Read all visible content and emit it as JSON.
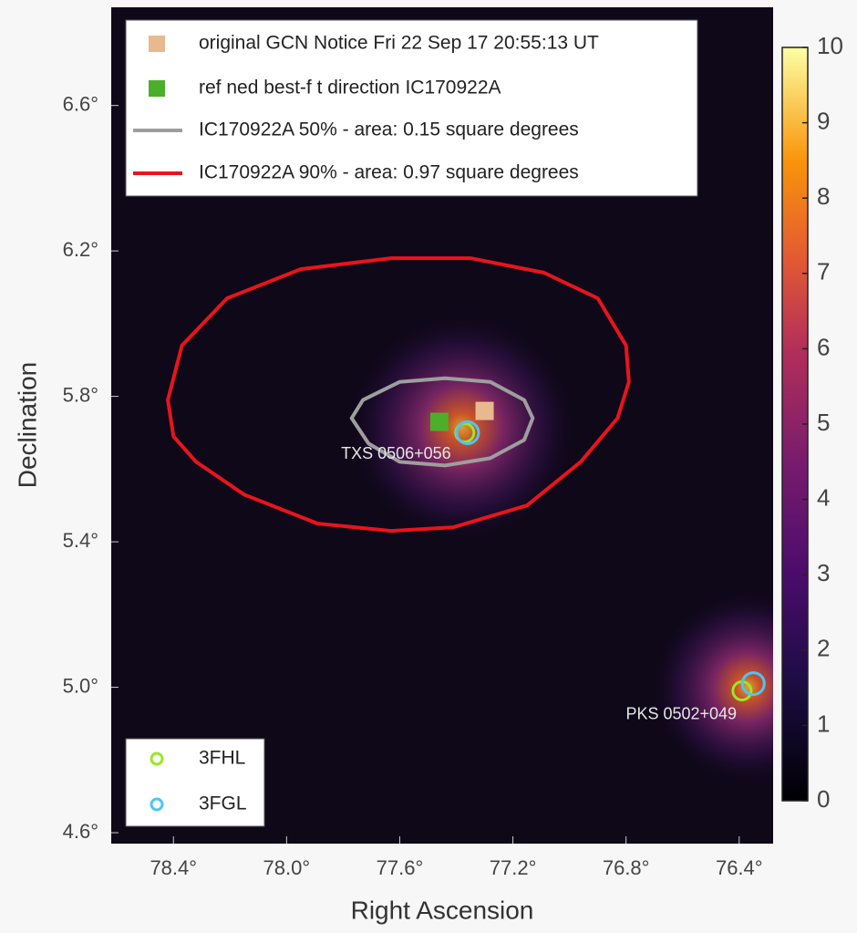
{
  "chart_data": {
    "type": "skymap",
    "xlabel": "Right Ascension",
    "ylabel": "Declination",
    "xlim": [
      78.62,
      76.28
    ],
    "ylim": [
      4.57,
      6.87
    ],
    "xticks": [
      {
        "value": 78.4,
        "label": "78.4°"
      },
      {
        "value": 78.0,
        "label": "78.0°"
      },
      {
        "value": 77.6,
        "label": "77.6°"
      },
      {
        "value": 77.2,
        "label": "77.2°"
      },
      {
        "value": 76.8,
        "label": "76.8°"
      },
      {
        "value": 76.4,
        "label": "76.4°"
      }
    ],
    "yticks": [
      {
        "value": 6.6,
        "label": "6.6°"
      },
      {
        "value": 6.2,
        "label": "6.2°"
      },
      {
        "value": 5.8,
        "label": "5.8°"
      },
      {
        "value": 5.4,
        "label": "5.4°"
      },
      {
        "value": 5.0,
        "label": "5.0°"
      },
      {
        "value": 4.6,
        "label": "4.6°"
      }
    ],
    "colorbar": {
      "clim": [
        0,
        10
      ],
      "ticks": [
        0,
        1,
        2,
        3,
        4,
        5,
        6,
        7,
        8,
        9,
        10
      ]
    },
    "markers": [
      {
        "name": "original GCN Notice Fri 22 Sep 17 20:55:13 UT",
        "color": "#e8b98f",
        "ra": 77.3,
        "dec": 5.76
      },
      {
        "name": "ref ned best-f t direction IC170922A",
        "color": "#4caf2a",
        "ra": 77.46,
        "dec": 5.73
      }
    ],
    "contours": [
      {
        "name": "IC170922A 50% - area: 0.15 square degrees",
        "color": "#9e9e9e",
        "ra": [
          77.77,
          77.73,
          77.6,
          77.44,
          77.28,
          77.16,
          77.13,
          77.16,
          77.28,
          77.44,
          77.6,
          77.71
        ],
        "dec": [
          5.74,
          5.79,
          5.84,
          5.85,
          5.84,
          5.79,
          5.74,
          5.68,
          5.63,
          5.61,
          5.62,
          5.67
        ]
      },
      {
        "name": "IC170922A 90% - area: 0.97 square degrees",
        "color": "#e8141c",
        "ra": [
          78.4,
          78.42,
          78.37,
          78.21,
          77.95,
          77.63,
          77.35,
          77.09,
          76.9,
          76.8,
          76.79,
          76.83,
          76.96,
          77.15,
          77.41,
          77.63,
          77.89,
          78.15,
          78.32
        ],
        "dec": [
          5.69,
          5.79,
          5.94,
          6.07,
          6.15,
          6.18,
          6.18,
          6.14,
          6.07,
          5.94,
          5.84,
          5.74,
          5.62,
          5.5,
          5.44,
          5.43,
          5.45,
          5.53,
          5.62
        ]
      }
    ],
    "catalogs": [
      {
        "name": "3FHL",
        "color": "#9be52a",
        "ra": [
          77.37,
          76.39
        ],
        "dec": [
          5.7,
          4.99
        ]
      },
      {
        "name": "3FGL",
        "color": "#4fc3f7",
        "ra": [
          77.36,
          76.35
        ],
        "dec": [
          5.7,
          5.01
        ]
      }
    ],
    "sources": [
      {
        "label": "TXS 0506+056",
        "ra": 77.38,
        "dec": 5.715
      },
      {
        "label": "PKS 0502+049",
        "ra": 76.37,
        "dec": 5.0
      }
    ]
  }
}
